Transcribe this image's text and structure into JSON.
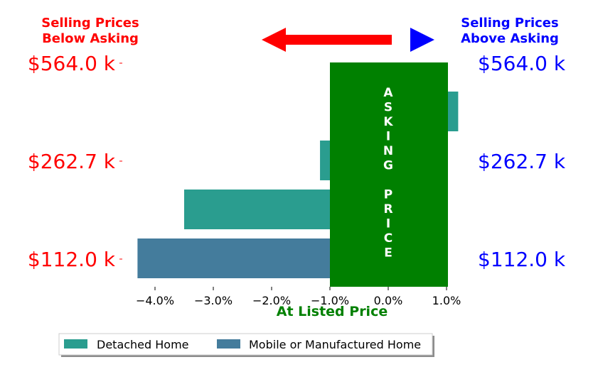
{
  "header": {
    "left_line1": "Selling Prices",
    "left_line2": "Below Asking",
    "right_line1": "Selling Prices",
    "right_line2": "Above Asking",
    "left_color": "#ff0000",
    "right_color": "#0000ff"
  },
  "overlay": {
    "label_top": "ASKING",
    "label_bottom": "PRICE",
    "color": "#008000",
    "xlabel": "At Listed Price"
  },
  "chart_data": {
    "type": "bar",
    "orientation": "horizontal",
    "xlim": [
      -4.3,
      1.2
    ],
    "xticks": [
      -4.0,
      -3.0,
      -2.0,
      -1.0,
      0.0,
      1.0
    ],
    "xtick_labels": [
      "−4.0%",
      "−3.0%",
      "−2.0%",
      "−1.0%",
      "0.0%",
      "1.0%"
    ],
    "xlabel": "At Listed Price",
    "price_labels": [
      "$564.0 k",
      "$262.7 k",
      "$112.0 k"
    ],
    "categories": [
      "Mobile or Manufactured Home",
      "Detached Home",
      "Detached Home",
      "Detached Home"
    ],
    "values": [
      -4.3,
      -3.5,
      -1.17,
      1.2
    ],
    "bar_colors": [
      "#447c9c",
      "#2a9d8f",
      "#2a9d8f",
      "#2a9d8f"
    ],
    "legend": [
      {
        "label": "Detached Home",
        "color": "#2a9d8f"
      },
      {
        "label": "Mobile or Manufactured Home",
        "color": "#447c9c"
      }
    ],
    "legend_position": "bottom"
  }
}
